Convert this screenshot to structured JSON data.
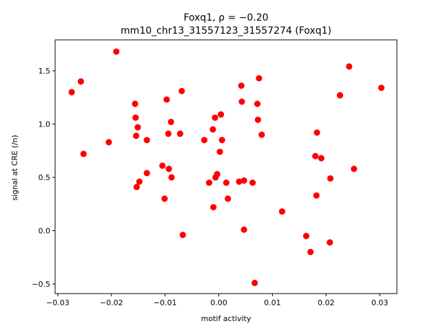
{
  "chart_data": {
    "type": "scatter",
    "title_line1": "Foxq1, ρ = −0.20",
    "title_line2": "mm10_chr13_31557123_31557274 (Foxq1)",
    "xlabel": "motif activity",
    "ylabel": "signal at CRE (/n)",
    "xlim": [
      -0.0305,
      0.0332
    ],
    "ylim": [
      -0.59,
      1.79
    ],
    "xticks": [
      -0.03,
      -0.02,
      -0.01,
      0.0,
      0.01,
      0.02,
      0.03
    ],
    "xtick_labels": [
      "−0.03",
      "−0.02",
      "−0.01",
      "0.00",
      "0.01",
      "0.02",
      "0.03"
    ],
    "yticks": [
      -0.5,
      0.0,
      0.5,
      1.0,
      1.5
    ],
    "ytick_labels": [
      "−0.5",
      "0.0",
      "0.5",
      "1.0",
      "1.5"
    ],
    "grid": false,
    "marker_color": "#ff0000",
    "points": [
      {
        "x": -0.0274,
        "y": 1.3
      },
      {
        "x": -0.0257,
        "y": 1.4
      },
      {
        "x": -0.0252,
        "y": 0.72
      },
      {
        "x": -0.0205,
        "y": 0.83
      },
      {
        "x": -0.0191,
        "y": 1.68
      },
      {
        "x": -0.0156,
        "y": 1.19
      },
      {
        "x": -0.0155,
        "y": 1.06
      },
      {
        "x": -0.0154,
        "y": 0.89
      },
      {
        "x": -0.0151,
        "y": 0.97
      },
      {
        "x": -0.0153,
        "y": 0.41
      },
      {
        "x": -0.0148,
        "y": 0.46
      },
      {
        "x": -0.0134,
        "y": 0.85
      },
      {
        "x": -0.0134,
        "y": 0.54
      },
      {
        "x": -0.0105,
        "y": 0.61
      },
      {
        "x": -0.0101,
        "y": 0.3
      },
      {
        "x": -0.0097,
        "y": 1.23
      },
      {
        "x": -0.0094,
        "y": 0.91
      },
      {
        "x": -0.0093,
        "y": 0.58
      },
      {
        "x": -0.0089,
        "y": 1.02
      },
      {
        "x": -0.0088,
        "y": 0.5
      },
      {
        "x": -0.0072,
        "y": 0.91
      },
      {
        "x": -0.0069,
        "y": 1.31
      },
      {
        "x": -0.0067,
        "y": -0.04
      },
      {
        "x": -0.0027,
        "y": 0.85
      },
      {
        "x": -0.0018,
        "y": 0.45
      },
      {
        "x": -0.0011,
        "y": 0.95
      },
      {
        "x": -0.001,
        "y": 0.22
      },
      {
        "x": -0.0007,
        "y": 1.06
      },
      {
        "x": -0.0006,
        "y": 0.5
      },
      {
        "x": -0.0003,
        "y": 0.53
      },
      {
        "x": 0.0002,
        "y": 0.74
      },
      {
        "x": 0.0004,
        "y": 1.09
      },
      {
        "x": 0.0006,
        "y": 0.85
      },
      {
        "x": 0.0014,
        "y": 0.45
      },
      {
        "x": 0.0017,
        "y": 0.3
      },
      {
        "x": 0.0038,
        "y": 0.46
      },
      {
        "x": 0.0042,
        "y": 1.36
      },
      {
        "x": 0.0043,
        "y": 1.21
      },
      {
        "x": 0.0047,
        "y": 0.47
      },
      {
        "x": 0.0047,
        "y": 0.01
      },
      {
        "x": 0.0063,
        "y": 0.45
      },
      {
        "x": 0.0067,
        "y": -0.49
      },
      {
        "x": 0.0072,
        "y": 1.19
      },
      {
        "x": 0.0073,
        "y": 1.04
      },
      {
        "x": 0.0075,
        "y": 1.43
      },
      {
        "x": 0.008,
        "y": 0.9
      },
      {
        "x": 0.0118,
        "y": 0.18
      },
      {
        "x": 0.0163,
        "y": -0.05
      },
      {
        "x": 0.0171,
        "y": -0.2
      },
      {
        "x": 0.018,
        "y": 0.7
      },
      {
        "x": 0.0182,
        "y": 0.33
      },
      {
        "x": 0.0183,
        "y": 0.92
      },
      {
        "x": 0.0191,
        "y": 0.68
      },
      {
        "x": 0.0207,
        "y": -0.11
      },
      {
        "x": 0.0208,
        "y": 0.49
      },
      {
        "x": 0.0226,
        "y": 1.27
      },
      {
        "x": 0.0243,
        "y": 1.54
      },
      {
        "x": 0.0252,
        "y": 0.58
      },
      {
        "x": 0.0303,
        "y": 1.34
      }
    ]
  }
}
